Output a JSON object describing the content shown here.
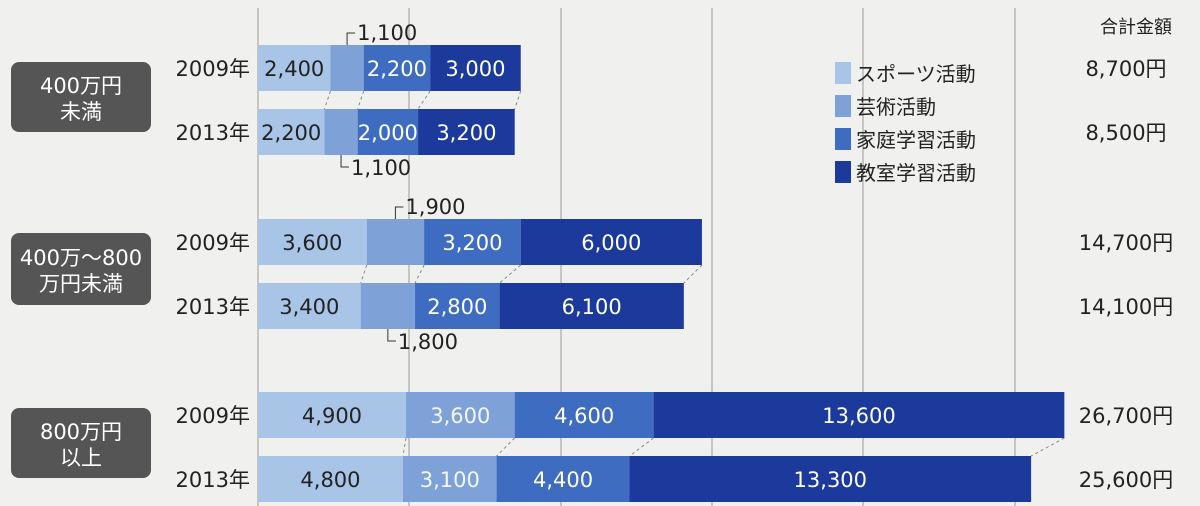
{
  "chart_data": {
    "type": "bar",
    "orientation": "horizontal",
    "stacked": true,
    "grid": true,
    "legend_position": "top-right",
    "total_header": "合計金額",
    "series": [
      {
        "name": "スポーツ活動",
        "color": "#a8c4e6"
      },
      {
        "name": "芸術活動",
        "color": "#7ea2d8"
      },
      {
        "name": "家庭学習活動",
        "color": "#3e6cc0"
      },
      {
        "name": "教室学習活動",
        "color": "#1b3a9c"
      }
    ],
    "groups": [
      {
        "label_lines": [
          "400万円",
          "未満"
        ],
        "rows": [
          {
            "year": "2009年",
            "values": [
              2400,
              1100,
              2200,
              3000
            ],
            "labels": [
              "2,400",
              "1,100",
              "2,200",
              "3,000"
            ],
            "total": "8,700円"
          },
          {
            "year": "2013年",
            "values": [
              2200,
              1100,
              2000,
              3200
            ],
            "labels": [
              "2,200",
              "1,100",
              "2,000",
              "3,200"
            ],
            "total": "8,500円"
          }
        ]
      },
      {
        "label_lines": [
          "400万〜800",
          "万円未満"
        ],
        "rows": [
          {
            "year": "2009年",
            "values": [
              3600,
              1900,
              3200,
              6000
            ],
            "labels": [
              "3,600",
              "1,900",
              "3,200",
              "6,000"
            ],
            "total": "14,700円"
          },
          {
            "year": "2013年",
            "values": [
              3400,
              1800,
              2800,
              6100
            ],
            "labels": [
              "3,400",
              "1,800",
              "2,800",
              "6,100"
            ],
            "total": "14,100円"
          }
        ]
      },
      {
        "label_lines": [
          "800万円",
          "以上"
        ],
        "rows": [
          {
            "year": "2009年",
            "values": [
              4900,
              3600,
              4600,
              13600
            ],
            "labels": [
              "4,900",
              "3,600",
              "4,600",
              "13,600"
            ],
            "total": "26,700円"
          },
          {
            "year": "2013年",
            "values": [
              4800,
              3100,
              4400,
              13300
            ],
            "labels": [
              "4,800",
              "3,100",
              "4,400",
              "13,300"
            ],
            "total": "25,600円"
          }
        ]
      }
    ]
  }
}
